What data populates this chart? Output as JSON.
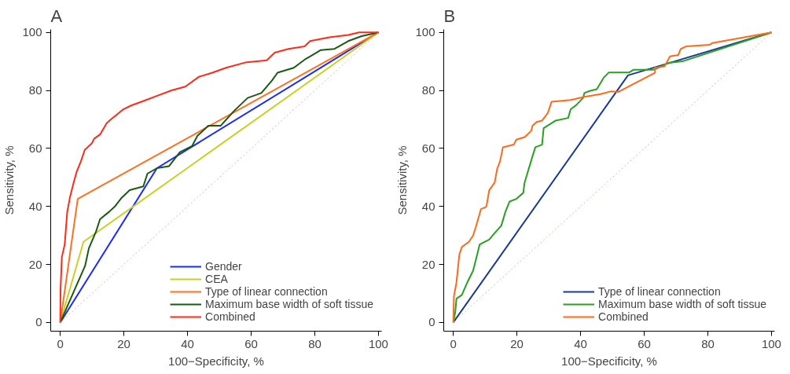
{
  "chart_data": [
    {
      "type": "line",
      "title": "A",
      "xlabel": "100−Specificity, %",
      "ylabel": "Sensitivity, %",
      "xlim": [
        -3,
        101
      ],
      "ylim": [
        -3,
        101
      ],
      "xticks": [
        0,
        20,
        40,
        60,
        80,
        100
      ],
      "yticks": [
        0,
        20,
        40,
        60,
        80,
        100
      ],
      "grid": false,
      "legend": "bottom right",
      "line_style": "solid",
      "series": [
        {
          "name": "Gender",
          "color": "#1a2aff",
          "x": [
            0,
            30.4,
            100
          ],
          "values": [
            0,
            53.2,
            100
          ]
        },
        {
          "name": "CEA",
          "color": "#c8d020",
          "x": [
            0,
            7.3,
            100
          ],
          "values": [
            0,
            27.8,
            100
          ]
        },
        {
          "name": "Type of linear connection",
          "color": "#ff7020",
          "x": [
            0,
            5.5,
            100
          ],
          "values": [
            0,
            42.6,
            100
          ]
        },
        {
          "name": "Maximum base width of soft tissue",
          "color": "#1a5a10",
          "x": [
            0,
            7.8,
            9.0,
            11.2,
            12.5,
            15.4,
            17.1,
            19.3,
            21.8,
            26.1,
            27.4,
            30.4,
            34.2,
            37.6,
            41.4,
            43.1,
            46.5,
            50.4,
            54.7,
            58.9,
            63.2,
            66.6,
            68.3,
            73.4,
            77.2,
            78.5,
            81.9,
            86.2,
            90.5,
            94.7,
            100
          ],
          "values": [
            0,
            19.5,
            25.6,
            31.2,
            35.6,
            38.2,
            39.9,
            43,
            45.6,
            46.9,
            51.3,
            53.2,
            53.9,
            58.7,
            60.8,
            64.3,
            67.8,
            67.8,
            73,
            77.4,
            79.1,
            83.5,
            86.1,
            87.8,
            90.9,
            91.7,
            93.9,
            94.3,
            97,
            98.7,
            100
          ]
        },
        {
          "name": "Combined",
          "color": "#ff2a1a",
          "x": [
            0,
            0.1,
            0.5,
            1.4,
            2.2,
            3.1,
            4.3,
            5.2,
            6.5,
            7.7,
            9.9,
            10.7,
            12.5,
            14.6,
            15.9,
            19.7,
            22.3,
            26.5,
            30.8,
            35,
            39.3,
            43.6,
            47.8,
            52.1,
            58.1,
            64.9,
            67.4,
            71.7,
            76.8,
            78.5,
            84.5,
            90.5,
            93.9,
            100
          ],
          "values": [
            0,
            11.7,
            22.5,
            26.9,
            38.2,
            43.4,
            48.6,
            52.1,
            55.6,
            59.5,
            61.7,
            63.4,
            64.8,
            68.7,
            70,
            73.4,
            74.8,
            76.5,
            78.3,
            80,
            81.3,
            84.7,
            86.1,
            87.8,
            89.6,
            90.4,
            93,
            94.3,
            95.2,
            97,
            98.3,
            99.1,
            100,
            100
          ]
        },
        {
          "color": "#e8b0b0",
          "line_style": "dotted",
          "x": [
            0,
            100
          ],
          "values": [
            0,
            100
          ]
        }
      ]
    },
    {
      "type": "line",
      "title": "B",
      "xlabel": "100−Specificity, %",
      "ylabel": "Sensitivity, %",
      "xlim": [
        -3,
        101
      ],
      "ylim": [
        -3,
        101
      ],
      "xticks": [
        0,
        20,
        40,
        60,
        80,
        100
      ],
      "yticks": [
        0,
        20,
        40,
        60,
        80,
        100
      ],
      "grid": false,
      "legend": "bottom right",
      "line_style": "solid",
      "series": [
        {
          "name": "Type of linear connection",
          "color": "#1a3a9a",
          "x": [
            0,
            54.9,
            100
          ],
          "values": [
            0,
            85.2,
            100
          ]
        },
        {
          "name": "Maximum base width of soft tissue",
          "color": "#28a020",
          "x": [
            0,
            0.6,
            1,
            2.7,
            4.4,
            6.2,
            7,
            8.3,
            11.3,
            13,
            15.1,
            16.4,
            17.7,
            19.8,
            22,
            22.4,
            24.9,
            25.8,
            27.9,
            28.4,
            32.2,
            36.1,
            36.9,
            38.6,
            40.8,
            41.2,
            42.9,
            45.1,
            46.3,
            47.2,
            48.9,
            55.3,
            56.6,
            63,
            67.7,
            72,
            100
          ],
          "values": [
            0,
            3.4,
            8.2,
            9.5,
            13.8,
            17.8,
            21.2,
            26.9,
            28.6,
            30.8,
            33.4,
            38.2,
            41.7,
            42.6,
            44.7,
            48.2,
            57.3,
            60.4,
            61.3,
            67,
            69.6,
            70.5,
            73.5,
            74.9,
            77.4,
            79.1,
            79.8,
            80.4,
            82.6,
            84.3,
            86.2,
            86.2,
            87.1,
            87.1,
            89.5,
            90,
            100
          ]
        },
        {
          "name": "Combined",
          "color": "#ff6a1a",
          "x": [
            0,
            0.2,
            1,
            1.9,
            2.7,
            4.9,
            6.2,
            7,
            7.9,
            8.7,
            10.4,
            11.3,
            13,
            13.8,
            14.7,
            15.6,
            19,
            19.8,
            22.4,
            23.3,
            24.5,
            24.9,
            26.2,
            27.9,
            29.7,
            30.9,
            36.9,
            41.2,
            46.3,
            49.7,
            51.9,
            63.4,
            63.4,
            66.4,
            68.1,
            70.7,
            71.5,
            73.3,
            80.5,
            81.4,
            100
          ],
          "values": [
            0,
            9,
            13.8,
            23.4,
            26,
            27.8,
            29.9,
            32.6,
            36,
            39.1,
            39.9,
            45.6,
            48.2,
            53,
            55.6,
            60.4,
            61.3,
            63,
            63.9,
            64.8,
            66.1,
            67.8,
            69.1,
            69.6,
            72.2,
            76.1,
            76.7,
            77.8,
            78.7,
            79.7,
            79.5,
            86.1,
            87.8,
            88.3,
            91.7,
            92.2,
            94.3,
            95.2,
            95.7,
            96.3,
            100
          ]
        },
        {
          "color": "#e8b0b0",
          "line_style": "dotted",
          "x": [
            0,
            100
          ],
          "values": [
            0,
            100
          ]
        }
      ]
    }
  ]
}
